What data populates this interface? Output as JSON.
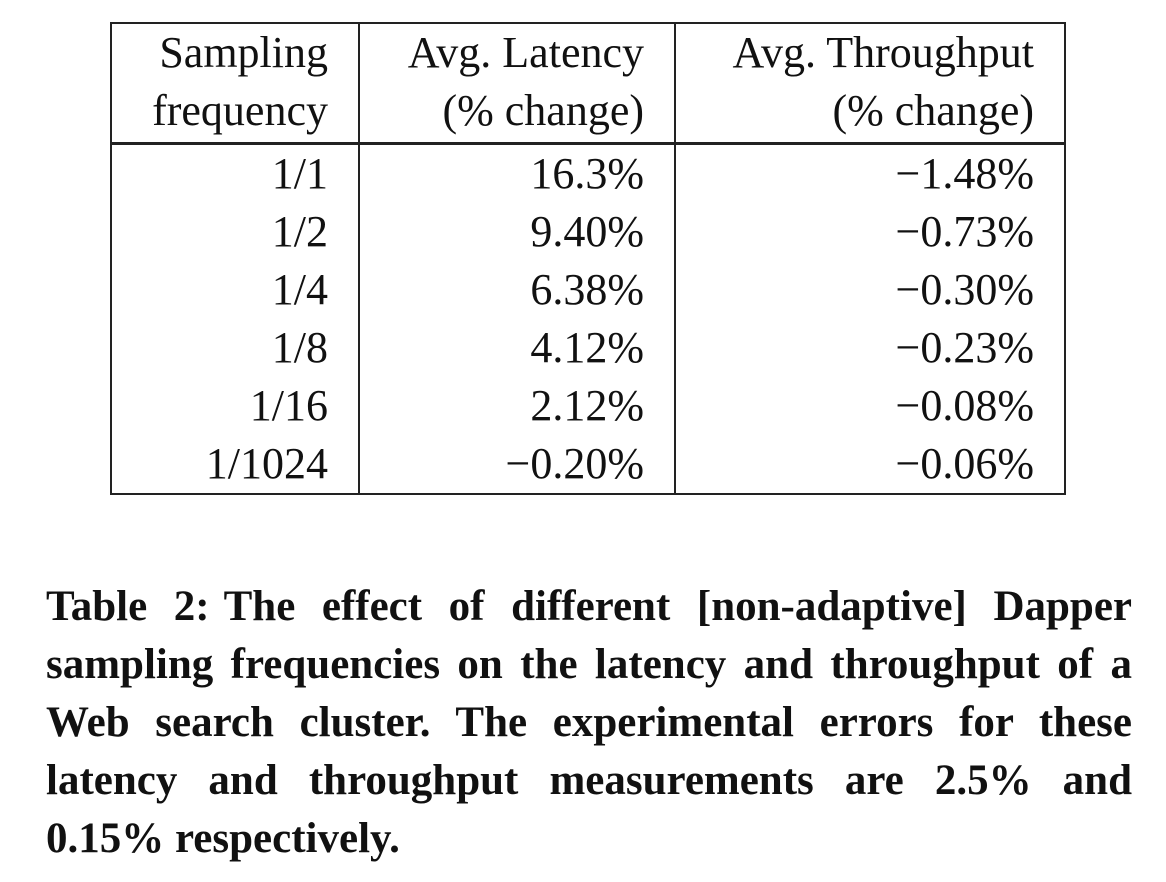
{
  "table": {
    "headers": [
      {
        "line1": "Sampling",
        "line2": "frequency"
      },
      {
        "line1": "Avg. Latency",
        "line2": "(% change)"
      },
      {
        "line1": "Avg. Throughput",
        "line2": "(% change)"
      }
    ],
    "rows": [
      [
        "1/1",
        "16.3%",
        "−1.48%"
      ],
      [
        "1/2",
        "9.40%",
        "−0.73%"
      ],
      [
        "1/4",
        "6.38%",
        "−0.30%"
      ],
      [
        "1/8",
        "4.12%",
        "−0.23%"
      ],
      [
        "1/16",
        "2.12%",
        "−0.08%"
      ],
      [
        "1/1024",
        "−0.20%",
        "−0.06%"
      ]
    ]
  },
  "caption": {
    "label": "Table 2:",
    "text": "The effect of different [non-adaptive] Dapper sampling frequencies on the latency and throughput of a Web search cluster. The experimental errors for these latency and throughput measurements are 2.5% and 0.15% respectively."
  }
}
